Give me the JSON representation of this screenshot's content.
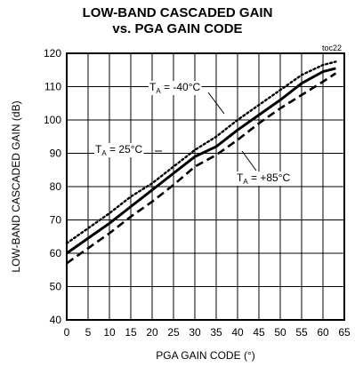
{
  "chart_data": {
    "type": "line",
    "title_line1": "LOW-BAND CASCADED GAIN",
    "title_line2": "vs. PGA GAIN CODE",
    "figure_id": "toc22",
    "xlabel": "PGA GAIN CODE (°)",
    "ylabel": "LOW-BAND CASCADED GAIN (dB)",
    "xlim": [
      0,
      65
    ],
    "ylim": [
      40,
      120
    ],
    "x_ticks": [
      "0",
      "5",
      "10",
      "15",
      "20",
      "25",
      "30",
      "35",
      "40",
      "45",
      "50",
      "55",
      "60",
      "65"
    ],
    "y_ticks": [
      "40",
      "50",
      "60",
      "70",
      "80",
      "90",
      "100",
      "110",
      "120"
    ],
    "grid": true,
    "series": [
      {
        "name": "TA = -40°C",
        "style": "dotted",
        "x": [
          0,
          5,
          10,
          15,
          20,
          25,
          30,
          35,
          40,
          45,
          50,
          55,
          60,
          63
        ],
        "y": [
          63,
          67.5,
          72,
          77,
          81,
          86,
          91,
          95,
          100,
          104.5,
          109,
          113.5,
          116.5,
          117.5
        ]
      },
      {
        "name": "TA = 25°C",
        "style": "solid",
        "x": [
          0,
          5,
          10,
          15,
          20,
          25,
          30,
          35,
          40,
          45,
          50,
          55,
          60,
          63
        ],
        "y": [
          60,
          64.5,
          69,
          74,
          79,
          84,
          89,
          92,
          97,
          101.5,
          106,
          111,
          114.5,
          115.5
        ]
      },
      {
        "name": "TA = +85°C",
        "style": "dashed",
        "x": [
          0,
          5,
          10,
          15,
          20,
          25,
          30,
          35,
          40,
          45,
          50,
          55,
          60,
          63
        ],
        "y": [
          57,
          61.5,
          66,
          71,
          75.5,
          80.5,
          86,
          89.5,
          94,
          99,
          103.5,
          107.5,
          111.5,
          114
        ]
      }
    ],
    "annotations": [
      {
        "sub_label": "A",
        "prefix": "T",
        "suffix": " = -40°C",
        "series": "TA = -40°C"
      },
      {
        "sub_label": "A",
        "prefix": "T",
        "suffix": " = 25°C",
        "series": "TA = 25°C"
      },
      {
        "sub_label": "A",
        "prefix": "T",
        "suffix": " = +85°C",
        "series": "TA = +85°C"
      }
    ]
  }
}
